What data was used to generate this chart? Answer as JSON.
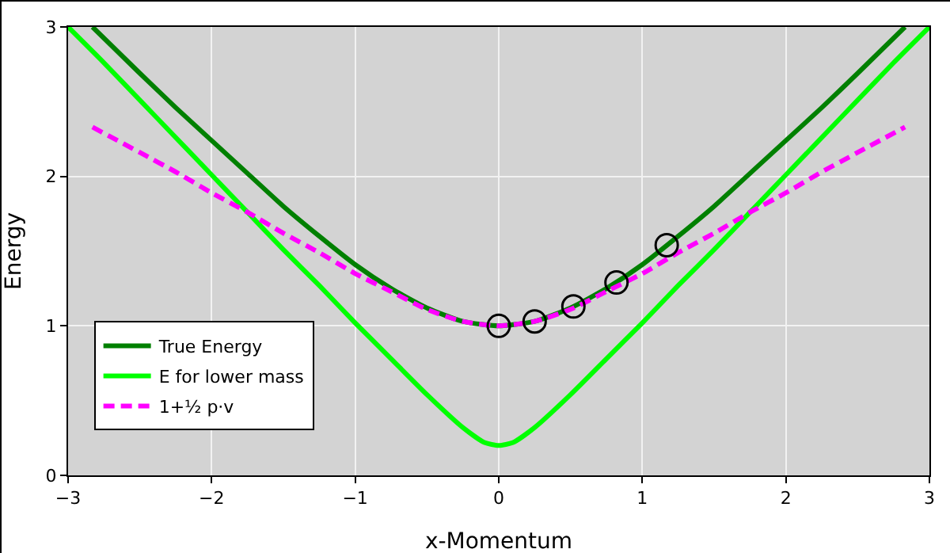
{
  "chart_data": {
    "type": "line",
    "xlabel": "x-Momentum",
    "ylabel": "Energy",
    "xlim": [
      -3,
      3
    ],
    "ylim": [
      0,
      3
    ],
    "xticks": [
      {
        "value": -3,
        "label": "−3"
      },
      {
        "value": -2,
        "label": "−2"
      },
      {
        "value": -1,
        "label": "−1"
      },
      0,
      1,
      2,
      3
    ],
    "yticks": [
      0,
      1,
      2,
      3
    ],
    "grid": true,
    "legend": "bottom left",
    "series": [
      {
        "name": "True Energy",
        "color": "#008000",
        "line_style": "solid",
        "x": [
          -2.83,
          -2.5,
          -2.25,
          -2,
          -1.75,
          -1.5,
          -1.25,
          -1,
          -0.75,
          -0.5,
          -0.25,
          0,
          0.25,
          0.5,
          0.75,
          1,
          1.25,
          1.5,
          1.75,
          2,
          2.25,
          2.5,
          2.83
        ],
        "values": [
          3.0,
          2.69,
          2.46,
          2.24,
          2.02,
          1.8,
          1.6,
          1.41,
          1.25,
          1.12,
          1.03,
          1,
          1.03,
          1.12,
          1.25,
          1.41,
          1.6,
          1.8,
          2.02,
          2.24,
          2.46,
          2.69,
          3.0
        ]
      },
      {
        "name": "E for lower mass",
        "color": "#00ff00",
        "line_style": "solid",
        "x": [
          -3,
          -2.75,
          -2.5,
          -2.25,
          -2,
          -1.75,
          -1.5,
          -1.25,
          -1,
          -0.75,
          -0.5,
          -0.25,
          -0.1,
          0,
          0.1,
          0.25,
          0.5,
          0.75,
          1,
          1.25,
          1.5,
          1.75,
          2,
          2.25,
          2.5,
          2.75,
          3
        ],
        "values": [
          3.0,
          2.76,
          2.51,
          2.26,
          2.01,
          1.76,
          1.51,
          1.27,
          1.02,
          0.78,
          0.54,
          0.32,
          0.22,
          0.2,
          0.22,
          0.32,
          0.54,
          0.78,
          1.02,
          1.27,
          1.51,
          1.76,
          2.01,
          2.26,
          2.51,
          2.76,
          3.0
        ]
      },
      {
        "name": "1+½ p·v",
        "color": "#ff00ff",
        "line_style": "dashed",
        "x": [
          -2.83,
          -2.5,
          -2.25,
          -2,
          -1.75,
          -1.5,
          -1.25,
          -1,
          -0.75,
          -0.5,
          -0.25,
          0,
          0.25,
          0.5,
          0.75,
          1,
          1.25,
          1.5,
          1.75,
          2,
          2.25,
          2.5,
          2.83
        ],
        "values": [
          2.33,
          2.16,
          2.03,
          1.89,
          1.76,
          1.62,
          1.49,
          1.35,
          1.23,
          1.11,
          1.03,
          1,
          1.03,
          1.11,
          1.23,
          1.35,
          1.49,
          1.62,
          1.76,
          1.89,
          2.03,
          2.16,
          2.33
        ]
      },
      {
        "type": "scatter",
        "color": "#000000",
        "marker": "circle",
        "x": [
          0,
          0.25,
          0.52,
          0.82,
          1.17
        ],
        "values": [
          1,
          1.03,
          1.13,
          1.29,
          1.54
        ]
      }
    ]
  }
}
